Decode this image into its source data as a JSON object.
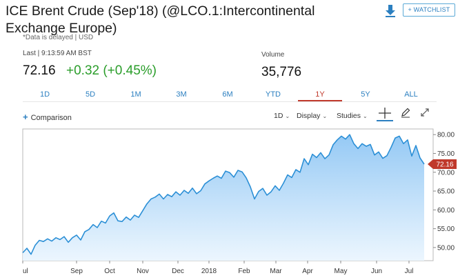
{
  "header": {
    "title": "ICE Brent Crude (Sep'18) (@LCO.1:Intercontinental Exchange Europe)",
    "delayed_note": "*Data is delayed | USD",
    "watchlist_label": "+ WATCHLIST",
    "download_icon": "download-icon"
  },
  "quote": {
    "last_label": "Last | 9:13:59 AM BST",
    "last_price": "72.16",
    "change": "+0.32 (+0.45%)",
    "change_color": "#2a9d2a",
    "volume_label": "Volume",
    "volume_value": "35,776"
  },
  "range_tabs": {
    "items": [
      "1D",
      "5D",
      "1M",
      "3M",
      "6M",
      "YTD",
      "1Y",
      "5Y",
      "ALL"
    ],
    "active": "1Y",
    "accent_color": "#c0392b"
  },
  "toolbar": {
    "comparison_label": "Comparison",
    "interval_label": "1D",
    "display_label": "Display",
    "studies_label": "Studies",
    "icons": [
      "crosshair-icon",
      "pencil-icon",
      "expand-icon"
    ]
  },
  "chart_data": {
    "type": "area",
    "x_tick_labels": [
      "ul",
      "Sep",
      "Oct",
      "Nov",
      "Dec",
      "2018",
      "Feb",
      "Mar",
      "Apr",
      "May",
      "Jun",
      "Jul"
    ],
    "y_ticks": [
      50,
      55,
      60,
      65,
      70,
      75,
      80
    ],
    "ylim": [
      46.5,
      81.5
    ],
    "last_value_label": "72.16",
    "line_color": "#2b8fd6",
    "fill_color": "#bfe0fb",
    "marker_color": "#c0392b",
    "y_axis_side": "right",
    "grid": false,
    "series": [
      {
        "values": [
          48.6,
          49.8,
          48.2,
          50.6,
          51.9,
          51.6,
          52.3,
          51.7,
          52.6,
          52.1,
          52.9,
          51.4,
          52.6,
          53.3,
          52.0,
          54.2,
          54.8,
          56.1,
          55.3,
          57.0,
          56.5,
          58.4,
          59.2,
          57.1,
          56.9,
          58.1,
          57.3,
          58.6,
          58.0,
          59.8,
          61.6,
          62.9,
          63.4,
          64.2,
          62.9,
          64.1,
          63.5,
          64.8,
          63.9,
          65.2,
          64.4,
          65.8,
          64.3,
          65.1,
          66.9,
          67.7,
          68.4,
          69.0,
          68.4,
          70.3,
          69.9,
          68.7,
          70.5,
          70.1,
          68.5,
          66.1,
          62.9,
          64.9,
          65.7,
          63.9,
          64.8,
          66.4,
          65.2,
          67.1,
          69.3,
          68.6,
          70.7,
          70.0,
          73.6,
          72.0,
          74.8,
          73.9,
          75.2,
          73.6,
          74.6,
          77.3,
          78.6,
          79.6,
          78.8,
          80.0,
          77.6,
          76.3,
          77.6,
          76.9,
          77.4,
          74.6,
          75.4,
          73.7,
          74.4,
          76.6,
          79.1,
          79.6,
          77.6,
          78.6,
          74.3,
          77.1,
          73.8,
          72.16
        ]
      }
    ]
  }
}
